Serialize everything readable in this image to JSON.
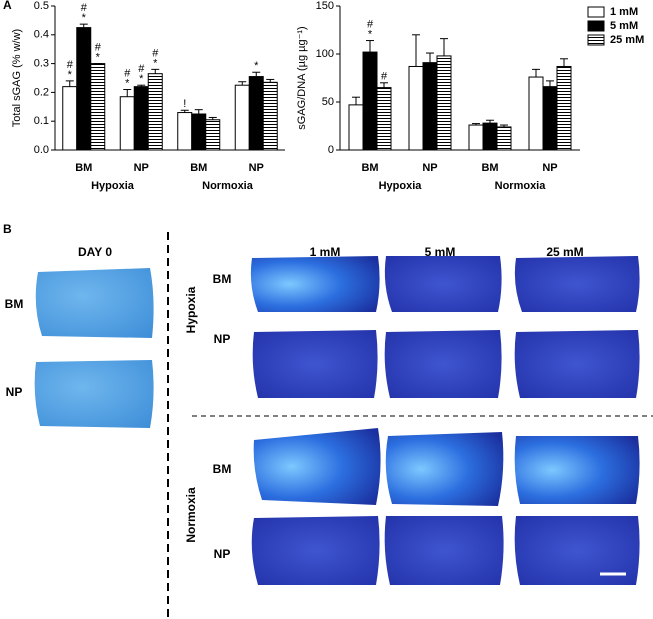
{
  "panel_labels": [
    "A",
    "B"
  ],
  "chart_data": [
    {
      "type": "bar",
      "y_label": "Total sGAG (% w/w)",
      "categories": [
        "BM",
        "NP",
        "BM",
        "NP"
      ],
      "group_labels": [
        "Hypoxia",
        "Normoxia"
      ],
      "ylim": [
        0,
        0.5
      ],
      "yticks": [
        {
          "value": 0,
          "label": "0.0"
        },
        0.1,
        0.2,
        0.3,
        0.4,
        0.5
      ],
      "series": [
        {
          "color": "#ffffff",
          "values": [
            0.22,
            0.185,
            0.13,
            0.225
          ],
          "errors": [
            0.02,
            0.025,
            0.008,
            0.012
          ],
          "markers": [
            [
              "#",
              "*"
            ],
            [
              "#",
              "*"
            ],
            [
              "!"
            ],
            null
          ]
        },
        {
          "color": "#000000",
          "values": [
            0.425,
            0.22,
            0.125,
            0.255
          ],
          "errors": [
            0.012,
            0.005,
            0.015,
            0.015
          ],
          "markers": [
            [
              "#",
              "*"
            ],
            [
              "#",
              "*"
            ],
            null,
            [
              "*"
            ]
          ]
        },
        {
          "color": "#ffffff",
          "hatch": "horizontal",
          "values": [
            0.3,
            0.265,
            0.105,
            0.235
          ],
          "errors": [
            0,
            0.015,
            0.008,
            0.01
          ],
          "markers": [
            [
              "#",
              "*"
            ],
            [
              "#",
              "*"
            ],
            null,
            null
          ]
        }
      ]
    },
    {
      "type": "bar",
      "y_label": "sGAG/DNA (µg µg⁻¹)",
      "categories": [
        "BM",
        "NP",
        "BM",
        "NP"
      ],
      "group_labels": [
        "Hypoxia",
        "Normoxia"
      ],
      "ylim": [
        0,
        150
      ],
      "yticks": [
        0,
        50,
        100,
        150
      ],
      "legend": "upper right",
      "series": [
        {
          "name": "1 mM",
          "color": "#ffffff",
          "values": [
            47,
            87,
            26,
            76
          ],
          "errors": [
            8,
            33,
            1.5,
            8
          ],
          "markers": [
            null,
            null,
            null,
            null
          ]
        },
        {
          "name": "5 mM",
          "color": "#000000",
          "values": [
            102,
            91,
            28,
            66
          ],
          "errors": [
            12,
            10,
            3,
            6
          ],
          "markers": [
            [
              "#",
              "*"
            ],
            null,
            null,
            null
          ]
        },
        {
          "name": "25 mM",
          "color": "#ffffff",
          "hatch": "horizontal",
          "values": [
            65,
            98,
            24,
            87
          ],
          "errors": [
            5,
            18,
            2,
            8
          ],
          "markers": [
            [
              "#"
            ],
            null,
            null,
            null
          ]
        }
      ]
    }
  ],
  "panel_b": {
    "day0_title": "DAY 0",
    "day0_rows": [
      "BM",
      "NP"
    ],
    "columns": [
      "1 mM",
      "5 mM",
      "25 mM"
    ],
    "conditions": [
      {
        "label": "Hypoxia",
        "rows": [
          "BM",
          "NP"
        ]
      },
      {
        "label": "Normoxia",
        "rows": [
          "BM",
          "NP"
        ]
      }
    ]
  }
}
